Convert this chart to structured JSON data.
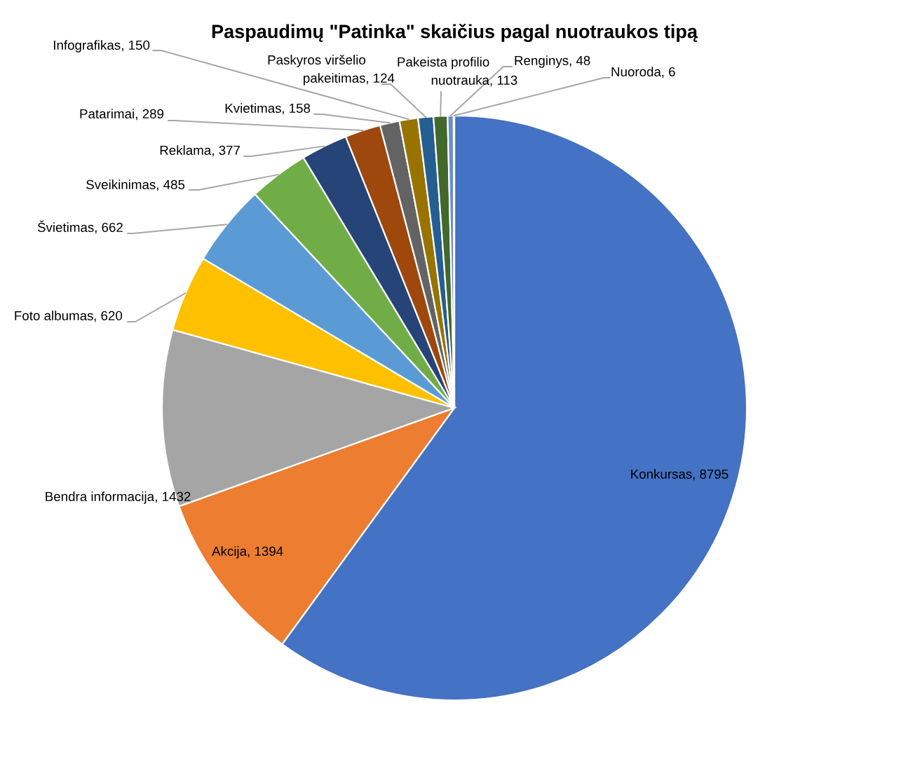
{
  "chart_data": {
    "type": "pie",
    "title": "Paspaudimų \"Patinka\" skaičius pagal nuotraukos tipą",
    "categories": [
      "Konkursas",
      "Akcija",
      "Bendra informacija",
      "Foto albumas",
      "Švietimas",
      "Sveikinimas",
      "Reklama",
      "Patarimai",
      "Kvietimas",
      "Infografikas",
      "Paskyros viršelio pakeitimas",
      "Pakeista profilio nuotrauka",
      "Renginys",
      "Nuoroda"
    ],
    "values": [
      8795,
      1394,
      1432,
      620,
      662,
      485,
      377,
      289,
      158,
      150,
      124,
      113,
      48,
      6
    ],
    "value_labels": [
      ", 8795",
      ", 1394",
      ", 1432",
      ", 620",
      ", 662",
      ", 485",
      ", 377",
      ", 289",
      ", 158",
      ", 150",
      ", 124",
      ", 113",
      ", 48",
      ", 6"
    ],
    "colors": [
      "#4472c4",
      "#ed7d31",
      "#a5a5a5",
      "#ffc000",
      "#5b9bd5",
      "#70ad47",
      "#264478",
      "#9e480e",
      "#636363",
      "#997300",
      "#255e91",
      "#43682b",
      "#698ed0",
      "#f1975a"
    ]
  }
}
